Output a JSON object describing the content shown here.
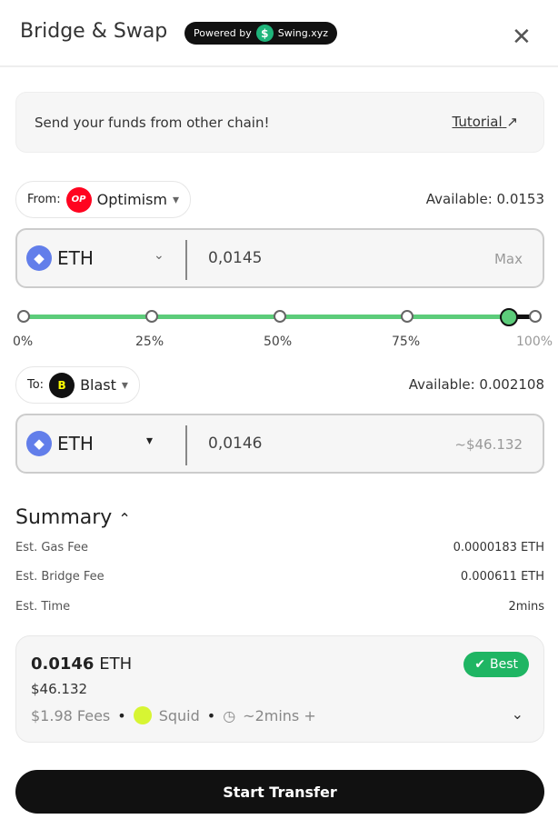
{
  "header": {
    "title": "Bridge & Swap",
    "powered_by": "Powered by",
    "brand": "Swing.xyz",
    "close_icon": "close-icon"
  },
  "banner": {
    "text": "Send your funds from other chain!",
    "link": "Tutorial",
    "link_icon": "arrow-up-right-icon"
  },
  "from": {
    "label": "From:",
    "chain": "Optimism",
    "chain_logo_text": "OP",
    "available": "Available: 0.0153",
    "token": "ETH",
    "amount": "0,0145",
    "max": "Max"
  },
  "slider": {
    "value_percent": 95,
    "ticks": [
      "0%",
      "25%",
      "50%",
      "75%",
      "100%"
    ]
  },
  "to": {
    "label": "To:",
    "chain": "Blast",
    "available": "Available: 0.002108",
    "token": "ETH",
    "amount": "0,0146",
    "usd": "~$46.132"
  },
  "summary": {
    "title": "Summary",
    "rows": [
      {
        "label": "Est. Gas Fee",
        "value": "0.0000183 ETH"
      },
      {
        "label": "Est. Bridge Fee",
        "value": "0.000611 ETH"
      },
      {
        "label": "Est. Time",
        "value": "2mins"
      }
    ]
  },
  "route": {
    "amount": "0.0146",
    "unit": "ETH",
    "usd": "$46.132",
    "badge": "Best",
    "fees": "$1.98 Fees",
    "provider": "Squid",
    "time": "~2mins +"
  },
  "actions": {
    "start": "Start Transfer"
  },
  "colors": {
    "accent_green": "#5ccc7a",
    "badge_green": "#1fb563",
    "button": "#111111"
  }
}
